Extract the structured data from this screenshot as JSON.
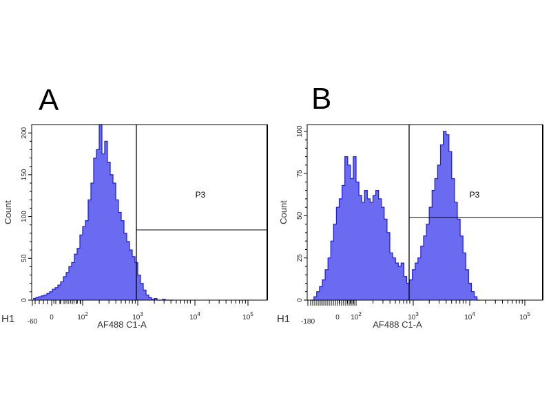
{
  "chart_data": [
    {
      "type": "histogram",
      "panel_label": "A",
      "xlabel": "AF488 C1-A",
      "ylabel": "Count",
      "plot_name": "H1",
      "x_scale": "biexponential (log decades)",
      "xlim": [
        -60,
        260000
      ],
      "x_ticks": [
        {
          "label": "-60",
          "value": -60
        },
        {
          "label": "0",
          "value": 0
        },
        {
          "label": "10",
          "exp": "2",
          "value": 100
        },
        {
          "label": "10",
          "exp": "3",
          "value": 1000
        },
        {
          "label": "10",
          "exp": "4",
          "value": 10000
        },
        {
          "label": "10",
          "exp": "5",
          "value": 100000
        }
      ],
      "ylim": [
        0,
        210
      ],
      "y_ticks": [
        0,
        50,
        100,
        150,
        200
      ],
      "gate": {
        "name": "P3",
        "x_min": 930,
        "x_max": 260000,
        "marker_count": 84
      },
      "bins_log10_start": 1.1,
      "bins_log10_step": 0.05,
      "counts": [
        2,
        3,
        4,
        5,
        6,
        8,
        10,
        13,
        15,
        18,
        22,
        28,
        33,
        40,
        45,
        55,
        62,
        78,
        88,
        95,
        120,
        140,
        170,
        180,
        210,
        175,
        190,
        165,
        150,
        140,
        120,
        105,
        95,
        80,
        70,
        60,
        52,
        45,
        30,
        20,
        12,
        6,
        3,
        1,
        2,
        0,
        0,
        1,
        0,
        0,
        0
      ],
      "color": "#6b6bf2",
      "line_color": "#1a1ad8"
    },
    {
      "type": "histogram",
      "panel_label": "B",
      "xlabel": "AF488 C1-A",
      "ylabel": "Count",
      "plot_name": "H1",
      "x_scale": "biexponential (log decades)",
      "xlim": [
        -180,
        260000
      ],
      "x_ticks": [
        {
          "label": "-180",
          "value": -180
        },
        {
          "label": "0",
          "value": 0
        },
        {
          "label": "10",
          "exp": "2",
          "value": 100
        },
        {
          "label": "10",
          "exp": "3",
          "value": 1000
        },
        {
          "label": "10",
          "exp": "4",
          "value": 10000
        },
        {
          "label": "10",
          "exp": "5",
          "value": 100000
        }
      ],
      "ylim": [
        0,
        104
      ],
      "y_ticks": [
        0,
        25,
        50,
        75,
        100
      ],
      "gate": {
        "name": "P3",
        "x_min": 850,
        "x_max": 260000,
        "marker_count": 49
      },
      "bins_log10_start": 1.2,
      "bins_log10_step": 0.05,
      "counts": [
        0,
        2,
        5,
        8,
        12,
        18,
        25,
        35,
        45,
        55,
        60,
        68,
        85,
        80,
        72,
        85,
        70,
        62,
        58,
        65,
        60,
        58,
        62,
        65,
        60,
        55,
        48,
        40,
        28,
        25,
        22,
        20,
        22,
        14,
        10,
        12,
        18,
        22,
        25,
        32,
        38,
        45,
        55,
        65,
        72,
        80,
        92,
        100,
        98,
        88,
        72,
        58,
        48,
        38,
        28,
        18,
        10,
        5,
        2,
        0
      ],
      "color": "#6b6bf2",
      "line_color": "#1a1ad8"
    }
  ]
}
